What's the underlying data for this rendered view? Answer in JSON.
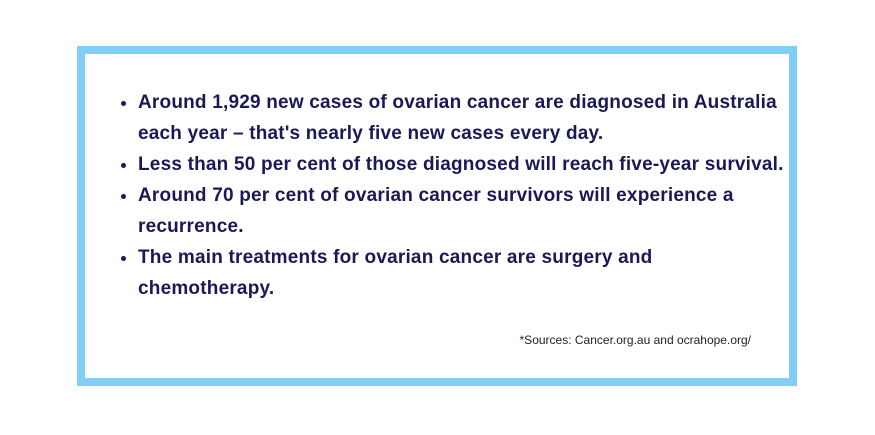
{
  "bullets": [
    "Around 1,929 new cases of ovarian cancer are diagnosed in Australia each year – that's nearly five new cases every day.",
    "Less than 50 per cent of those diagnosed will reach five-year survival.",
    "Around 70 per cent of ovarian cancer survivors will experience a recurrence.",
    "The main treatments for ovarian cancer are surgery and chemotherapy."
  ],
  "sources": "*Sources: Cancer.org.au and ocrahope.org/"
}
